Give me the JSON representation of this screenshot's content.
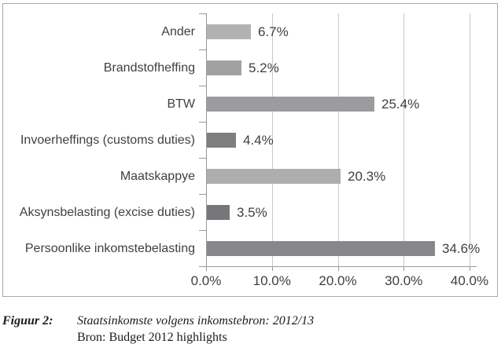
{
  "chart_data": {
    "type": "bar",
    "orientation": "horizontal",
    "categories": [
      "Ander",
      "Brandstofheffing",
      "BTW",
      "Invoerheffings (customs duties)",
      "Maatskappye",
      "Aksynsbelasting (excise duties)",
      "Persoonlike inkomstebelasting"
    ],
    "values": [
      6.7,
      5.2,
      25.4,
      4.4,
      20.3,
      3.5,
      34.6
    ],
    "data_labels": [
      "6.7%",
      "5.2%",
      "25.4%",
      "4.4%",
      "20.3%",
      "3.5%",
      "34.6%"
    ],
    "bar_colors": [
      "#b2b2b4",
      "#a1a1a4",
      "#9c9c9f",
      "#7e7e81",
      "#aeaeb1",
      "#77777b",
      "#87878a"
    ],
    "x_axis": {
      "min": 0,
      "max": 40,
      "ticks": [
        0,
        10,
        20,
        30,
        40
      ],
      "tick_labels": [
        "0.0%",
        "10.0%",
        "20.0%",
        "30.0%",
        "40.0%"
      ]
    },
    "grid": true,
    "legend": false,
    "title": "",
    "xlabel": "",
    "ylabel": ""
  },
  "styles": {
    "background": "#ffffff",
    "frame_border_color": "#a9a9a9",
    "gridline_color": "#c9c9c9",
    "axis_color": "#9a9a9a",
    "chart_text_color": "#3f3f3f",
    "caption_text_color": "#1b1b1b"
  },
  "caption": {
    "figure_label": "Figuur 2:",
    "title": "Staatsinkomste volgens inkomstebron: 2012/13",
    "source": "Bron: Budget 2012 highlights"
  }
}
